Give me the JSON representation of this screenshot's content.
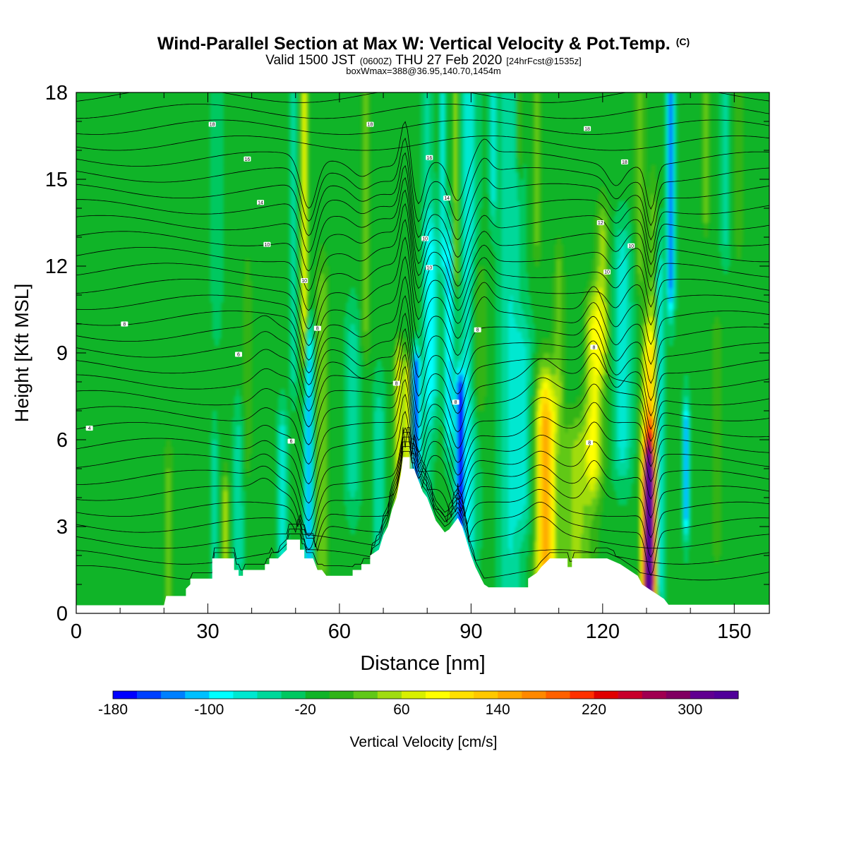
{
  "header": {
    "title_main": "Wind-Parallel Section at Max W: Vertical Velocity & Pot.Temp.",
    "title_copyright": "(C)",
    "valid_a": "Valid 1500 JST",
    "valid_b": "(0600Z)",
    "valid_c": "THU 27 Feb 2020",
    "valid_d": "[24hrFcst@1535z]",
    "box_line": "boxWmax=388@36.95,140.70,1454m"
  },
  "chart_data": {
    "type": "heatmap",
    "xlabel": "Distance [nm]",
    "ylabel": "Height [Kft MSL]",
    "xlim": [
      0,
      158
    ],
    "ylim": [
      0,
      18
    ],
    "x_ticks": [
      "0",
      "30",
      "60",
      "90",
      "120",
      "150"
    ],
    "y_ticks": [
      "0",
      "3",
      "6",
      "9",
      "12",
      "15",
      "18"
    ],
    "colorbar": {
      "label": "Vertical Velocity [cm/s]",
      "tick_labels": [
        "-180",
        "-100",
        "-20",
        "60",
        "140",
        "220",
        "300"
      ],
      "min": -180,
      "max": 340,
      "step": 20,
      "colors": [
        "#0000ff",
        "#0040ff",
        "#0080ff",
        "#00c0ff",
        "#00ffff",
        "#00e8d0",
        "#00d89a",
        "#00c860",
        "#10b428",
        "#30b418",
        "#60c818",
        "#a0dc10",
        "#d8f000",
        "#ffff00",
        "#ffe000",
        "#ffc800",
        "#ffa800",
        "#ff8800",
        "#ff6000",
        "#ff3000",
        "#e00000",
        "#c8002a",
        "#a00050",
        "#800060",
        "#600090",
        "#500099"
      ]
    },
    "terrain_kft": [
      [
        0,
        0.28
      ],
      [
        20,
        0.28
      ],
      [
        20.5,
        0.6
      ],
      [
        25,
        0.6
      ],
      [
        25,
        0.85
      ],
      [
        26,
        1.0
      ],
      [
        26,
        1.2
      ],
      [
        31,
        1.2
      ],
      [
        31,
        1.9
      ],
      [
        36,
        1.9
      ],
      [
        36,
        1.5
      ],
      [
        37,
        1.5
      ],
      [
        37,
        1.3
      ],
      [
        38,
        1.3
      ],
      [
        38,
        1.5
      ],
      [
        43,
        1.5
      ],
      [
        43,
        1.7
      ],
      [
        44,
        1.7
      ],
      [
        44,
        1.9
      ],
      [
        46,
        1.9
      ],
      [
        48,
        2.2
      ],
      [
        48,
        2.55
      ],
      [
        51,
        2.55
      ],
      [
        51,
        2.2
      ],
      [
        52,
        2.2
      ],
      [
        52,
        1.9
      ],
      [
        54,
        1.9
      ],
      [
        55,
        1.5
      ],
      [
        56,
        1.5
      ],
      [
        57,
        1.3
      ],
      [
        63,
        1.3
      ],
      [
        63,
        1.5
      ],
      [
        65,
        1.5
      ],
      [
        65,
        1.7
      ],
      [
        67,
        1.7
      ],
      [
        67,
        2.0
      ],
      [
        69,
        2.2
      ],
      [
        70,
        2.7
      ],
      [
        71,
        3.0
      ],
      [
        72,
        3.6
      ],
      [
        73,
        4.0
      ],
      [
        74,
        4.8
      ],
      [
        74.5,
        5.4
      ],
      [
        76,
        5.4
      ],
      [
        76,
        5.0
      ],
      [
        77,
        5.0
      ],
      [
        78,
        4.6
      ],
      [
        79,
        4.2
      ],
      [
        80,
        4.0
      ],
      [
        81,
        3.6
      ],
      [
        82,
        3.2
      ],
      [
        83,
        3.0
      ],
      [
        84,
        2.8
      ],
      [
        85,
        2.9
      ],
      [
        86,
        3.1
      ],
      [
        87,
        3.3
      ],
      [
        88,
        3.0
      ],
      [
        89,
        2.5
      ],
      [
        90,
        2.0
      ],
      [
        91,
        1.6
      ],
      [
        92,
        1.3
      ],
      [
        93,
        1.0
      ],
      [
        94,
        0.9
      ],
      [
        103,
        0.9
      ],
      [
        103,
        1.2
      ],
      [
        105,
        1.4
      ],
      [
        106,
        1.6
      ],
      [
        108,
        1.9
      ],
      [
        112,
        1.9
      ],
      [
        112,
        1.6
      ],
      [
        113,
        1.6
      ],
      [
        113,
        1.9
      ],
      [
        121,
        1.9
      ],
      [
        124,
        1.7
      ],
      [
        126,
        1.5
      ],
      [
        128,
        1.3
      ],
      [
        129,
        1.0
      ],
      [
        130,
        0.9
      ],
      [
        131,
        0.8
      ],
      [
        133,
        0.6
      ],
      [
        134,
        0.5
      ],
      [
        135,
        0.3
      ],
      [
        158,
        0.3
      ]
    ],
    "theta_labels": [
      {
        "text": "4",
        "x": 3,
        "y": 6.4
      },
      {
        "text": "6",
        "x": 49,
        "y": 5.95
      },
      {
        "text": "8",
        "x": 117,
        "y": 5.9
      },
      {
        "text": "8",
        "x": 86.5,
        "y": 7.3
      },
      {
        "text": "8",
        "x": 73,
        "y": 7.95
      },
      {
        "text": "6",
        "x": 37,
        "y": 8.95
      },
      {
        "text": "8",
        "x": 118,
        "y": 9.2
      },
      {
        "text": "8",
        "x": 11,
        "y": 10.0
      },
      {
        "text": "8",
        "x": 55,
        "y": 9.85
      },
      {
        "text": "8",
        "x": 91.5,
        "y": 9.8
      },
      {
        "text": "10",
        "x": 52,
        "y": 11.5
      },
      {
        "text": "10",
        "x": 121,
        "y": 11.8
      },
      {
        "text": "10",
        "x": 80.5,
        "y": 11.95
      },
      {
        "text": "10",
        "x": 43.5,
        "y": 12.75
      },
      {
        "text": "10",
        "x": 79.5,
        "y": 12.95
      },
      {
        "text": "10",
        "x": 126.5,
        "y": 12.7
      },
      {
        "text": "12",
        "x": 119.5,
        "y": 13.5
      },
      {
        "text": "14",
        "x": 42,
        "y": 14.2
      },
      {
        "text": "14",
        "x": 84.5,
        "y": 14.35
      },
      {
        "text": "16",
        "x": 39,
        "y": 15.7
      },
      {
        "text": "16",
        "x": 80.5,
        "y": 15.75
      },
      {
        "text": "18",
        "x": 125,
        "y": 15.6
      },
      {
        "text": "18",
        "x": 31,
        "y": 16.9
      },
      {
        "text": "18",
        "x": 67,
        "y": 16.9
      },
      {
        "text": "18",
        "x": 116.5,
        "y": 16.75
      }
    ]
  }
}
